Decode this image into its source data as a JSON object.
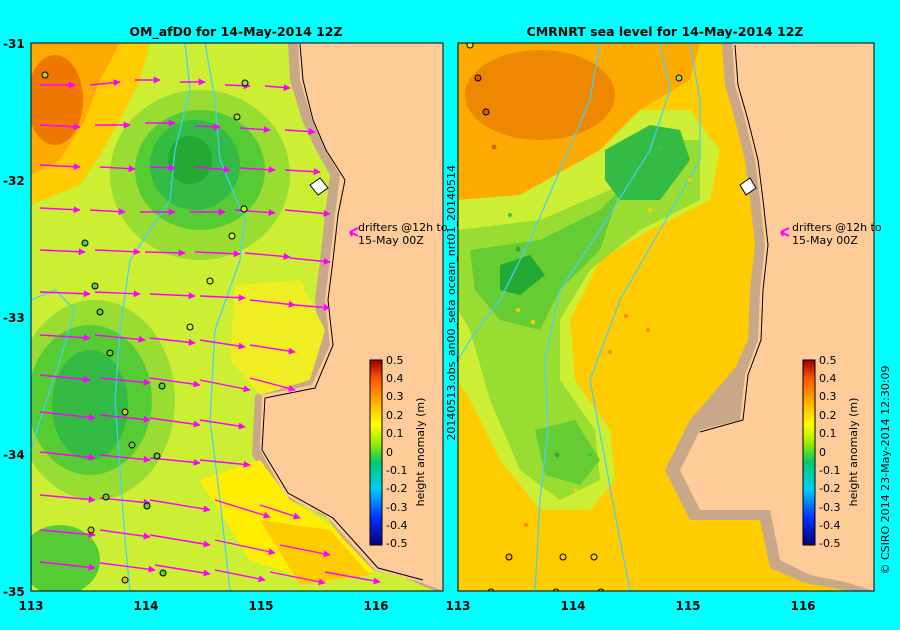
{
  "left_panel": {
    "title": "OM_afD0 for 14-May-2014 12Z",
    "drifter_note_line1": "drifters @12h to",
    "drifter_note_line2": "15-May 00Z",
    "colorbar_label": "height anomaly (m)"
  },
  "right_panel": {
    "title": "CMRNRT sea level  for 14-May-2014 12Z",
    "drifter_note_line1": "drifters @12h to",
    "drifter_note_line2": "15-May 00Z",
    "colorbar_label": "height anomaly (m)",
    "side_label_top": "ocean_nrt01_20140514",
    "side_label_bottom": "20140513.obs_an00_seta"
  },
  "y_ticks": [
    "-31",
    "-32",
    "-33",
    "-34",
    "-35"
  ],
  "x_ticks": [
    "113",
    "114",
    "115",
    "116"
  ],
  "colorbar_ticks": [
    "0.5",
    "0.4",
    "0.3",
    "0.2",
    "0.1",
    "0",
    "-0.1",
    "-0.2",
    "-0.3",
    "-0.4",
    "-0.5"
  ],
  "credit": "© CSIRO 2014   23-May-2014 12:30:09",
  "colors": {
    "background": "#00ffff",
    "land": "#ffcc99",
    "shelf": "#c8a888",
    "drifter_arrows": "#ff00ff",
    "isobath": "#40d0ff"
  }
}
